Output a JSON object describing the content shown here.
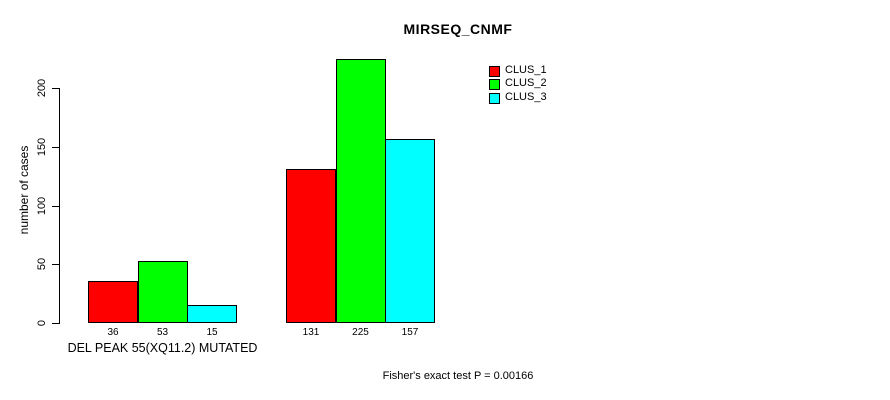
{
  "chart_data": {
    "type": "bar",
    "title": "MIRSEQ_CNMF",
    "ylabel": "number of cases",
    "yticks": [
      0,
      50,
      100,
      150,
      200
    ],
    "ylim": [
      0,
      225
    ],
    "grid": false,
    "legend_position": "top-right",
    "series": [
      {
        "name": "CLUS_1",
        "color": "#FF0000"
      },
      {
        "name": "CLUS_2",
        "color": "#00FF00"
      },
      {
        "name": "CLUS_3",
        "color": "#00FFFF"
      }
    ],
    "groups": [
      {
        "label": "DEL PEAK 55(XQ11.2) MUTATED",
        "values": [
          36,
          53,
          15
        ]
      },
      {
        "label": "",
        "values": [
          131,
          225,
          157
        ]
      }
    ],
    "bar_border_color": "#000000",
    "axis_color": "#000000",
    "annotation": "Fisher's exact test P = 0.00166"
  }
}
